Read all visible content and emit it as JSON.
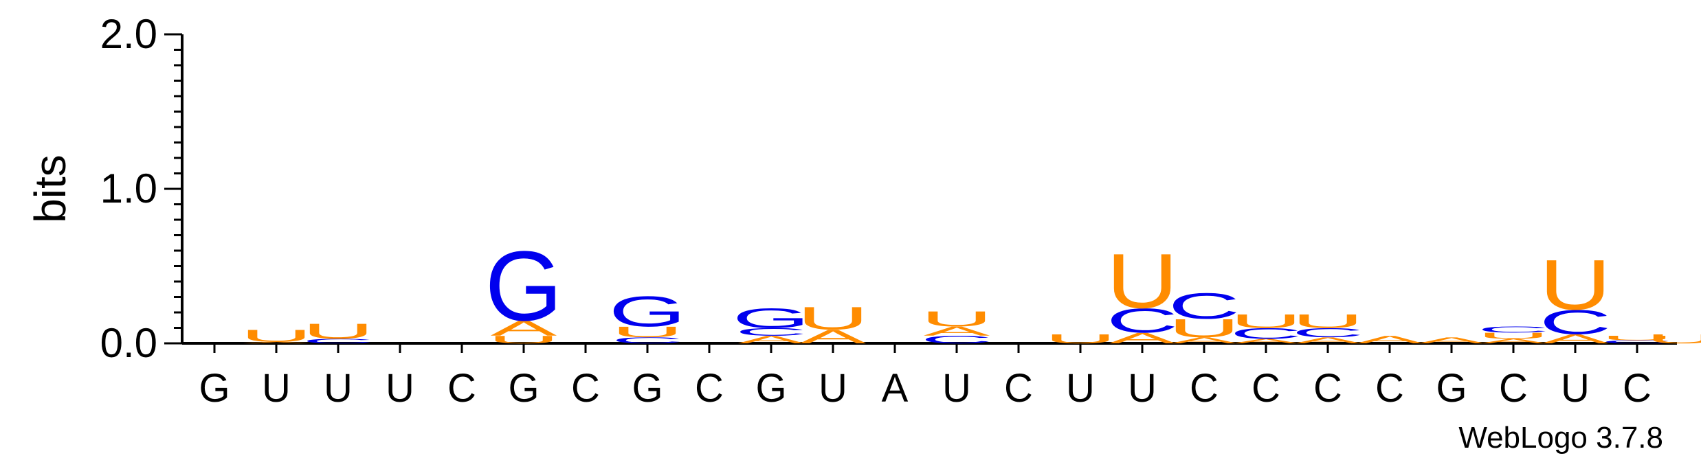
{
  "chart_data": {
    "type": "sequence-logo",
    "ylabel": "bits",
    "ylim": [
      0,
      2.0
    ],
    "yticks": [
      "0.0",
      "1.0",
      "2.0"
    ],
    "credit": "WebLogo 3.7.8",
    "colors": {
      "A": "#ff8c00",
      "U": "#ff8c00",
      "G": "#0000ee",
      "C": "#0000ee"
    },
    "positions": [
      {
        "label": "G",
        "stack": []
      },
      {
        "label": "U",
        "stack": [
          [
            "A",
            0.01
          ],
          [
            "U",
            0.08
          ]
        ]
      },
      {
        "label": "U",
        "stack": [
          [
            "C",
            0.03
          ],
          [
            "U",
            0.1
          ]
        ]
      },
      {
        "label": "U",
        "stack": []
      },
      {
        "label": "C",
        "stack": []
      },
      {
        "label": "G",
        "stack": [
          [
            "U",
            0.05
          ],
          [
            "A",
            0.1
          ],
          [
            "G",
            0.46
          ]
        ]
      },
      {
        "label": "C",
        "stack": []
      },
      {
        "label": "G",
        "stack": [
          [
            "C",
            0.04
          ],
          [
            "U",
            0.07
          ],
          [
            "G",
            0.2
          ]
        ]
      },
      {
        "label": "C",
        "stack": []
      },
      {
        "label": "G",
        "stack": [
          [
            "A",
            0.05
          ],
          [
            "C",
            0.05
          ],
          [
            "G",
            0.13
          ]
        ]
      },
      {
        "label": "U",
        "stack": [
          [
            "A",
            0.09
          ],
          [
            "U",
            0.15
          ]
        ]
      },
      {
        "label": "A",
        "stack": []
      },
      {
        "label": "U",
        "stack": [
          [
            "C",
            0.05
          ],
          [
            "A",
            0.06
          ],
          [
            "U",
            0.1
          ]
        ]
      },
      {
        "label": "C",
        "stack": []
      },
      {
        "label": "U",
        "stack": [
          [
            "U",
            0.06
          ]
        ]
      },
      {
        "label": "U",
        "stack": [
          [
            "A",
            0.07
          ],
          [
            "C",
            0.16
          ],
          [
            "U",
            0.36
          ]
        ]
      },
      {
        "label": "C",
        "stack": [
          [
            "A",
            0.04
          ],
          [
            "U",
            0.12
          ],
          [
            "C",
            0.17
          ]
        ]
      },
      {
        "label": "C",
        "stack": [
          [
            "A",
            0.03
          ],
          [
            "C",
            0.07
          ],
          [
            "U",
            0.09
          ]
        ]
      },
      {
        "label": "C",
        "stack": [
          [
            "A",
            0.04
          ],
          [
            "C",
            0.06
          ],
          [
            "U",
            0.09
          ]
        ]
      },
      {
        "label": "C",
        "stack": [
          [
            "A",
            0.05
          ]
        ]
      },
      {
        "label": "G",
        "stack": [
          [
            "A",
            0.04
          ]
        ]
      },
      {
        "label": "C",
        "stack": [
          [
            "A",
            0.03
          ],
          [
            "U",
            0.04
          ],
          [
            "C",
            0.04
          ]
        ]
      },
      {
        "label": "U",
        "stack": [
          [
            "A",
            0.06
          ],
          [
            "C",
            0.16
          ],
          [
            "U",
            0.33
          ]
        ]
      },
      {
        "label": "C",
        "stack": [
          [
            "C",
            0.02
          ],
          [
            "U",
            0.03
          ]
        ]
      }
    ],
    "trailing_stack": [
      [
        "U",
        0.06
      ]
    ]
  }
}
